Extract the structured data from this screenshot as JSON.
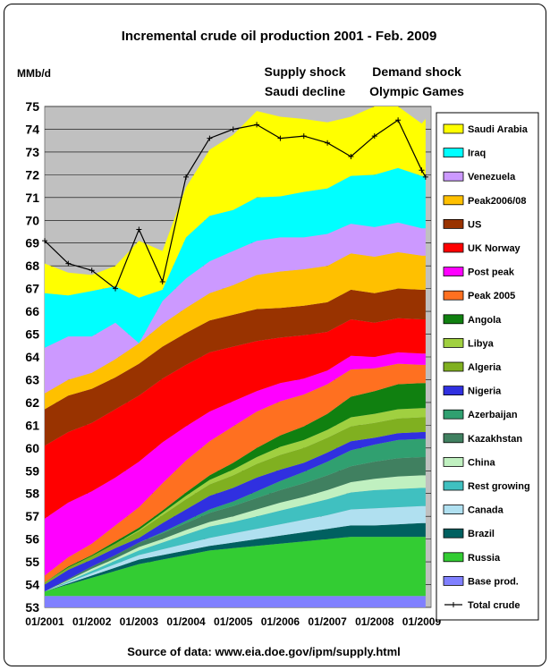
{
  "chart_data": {
    "type": "area",
    "title": "Incremental crude oil production 2001 - Feb. 2009",
    "ylabel": "MMb/d",
    "source": "Source of data: www.eia.doe.gov/ipm/supply.html",
    "annotations": [
      "Supply shock",
      "Saudi decline",
      "Demand shock",
      "Olympic Games"
    ],
    "ylim": [
      53,
      75
    ],
    "y_ticks": [
      53,
      54,
      55,
      56,
      57,
      58,
      59,
      60,
      61,
      62,
      63,
      64,
      65,
      66,
      67,
      68,
      69,
      70,
      71,
      72,
      73,
      74,
      75
    ],
    "x_ticks": [
      "01/2001",
      "01/2002",
      "01/2003",
      "01/2004",
      "01/2005",
      "01/2006",
      "01/2007",
      "01/2008",
      "01/2009"
    ],
    "grid": true,
    "legend_position": "right",
    "x": [
      "01/2001",
      "07/2001",
      "01/2002",
      "07/2002",
      "01/2003",
      "07/2003",
      "01/2004",
      "07/2004",
      "01/2005",
      "07/2005",
      "01/2006",
      "07/2006",
      "01/2007",
      "07/2007",
      "01/2008",
      "07/2008",
      "01/2009",
      "02/2009"
    ],
    "series": [
      {
        "name": "Base prod.",
        "color": "#8080ff",
        "values": [
          0.5,
          0.5,
          0.5,
          0.5,
          0.5,
          0.5,
          0.5,
          0.5,
          0.5,
          0.5,
          0.5,
          0.5,
          0.5,
          0.5,
          0.5,
          0.5,
          0.5,
          0.5
        ]
      },
      {
        "name": "Russia",
        "color": "#33cc33",
        "values": [
          0.2,
          0.5,
          0.8,
          1.1,
          1.4,
          1.6,
          1.8,
          2.0,
          2.1,
          2.2,
          2.3,
          2.4,
          2.5,
          2.6,
          2.6,
          2.6,
          2.6,
          2.6
        ]
      },
      {
        "name": "Brazil",
        "color": "#006060",
        "values": [
          0.0,
          0.05,
          0.1,
          0.15,
          0.2,
          0.2,
          0.2,
          0.2,
          0.25,
          0.3,
          0.35,
          0.4,
          0.45,
          0.5,
          0.5,
          0.55,
          0.6,
          0.6
        ]
      },
      {
        "name": "Canada",
        "color": "#b0e0f0",
        "values": [
          0.0,
          0.05,
          0.1,
          0.15,
          0.2,
          0.25,
          0.3,
          0.35,
          0.4,
          0.45,
          0.5,
          0.55,
          0.6,
          0.7,
          0.75,
          0.75,
          0.75,
          0.75
        ]
      },
      {
        "name": "Rest growing",
        "color": "#40c0c0",
        "values": [
          0.0,
          0.05,
          0.1,
          0.15,
          0.2,
          0.3,
          0.4,
          0.5,
          0.5,
          0.55,
          0.6,
          0.65,
          0.7,
          0.75,
          0.8,
          0.8,
          0.8,
          0.8
        ]
      },
      {
        "name": "China",
        "color": "#c0f0c0",
        "values": [
          0.0,
          0.05,
          0.1,
          0.1,
          0.15,
          0.15,
          0.2,
          0.2,
          0.25,
          0.3,
          0.35,
          0.35,
          0.4,
          0.45,
          0.5,
          0.55,
          0.55,
          0.55
        ]
      },
      {
        "name": "Kazakhstan",
        "color": "#408060",
        "values": [
          0.0,
          0.05,
          0.1,
          0.15,
          0.2,
          0.25,
          0.3,
          0.4,
          0.45,
          0.5,
          0.55,
          0.6,
          0.65,
          0.7,
          0.75,
          0.8,
          0.8,
          0.8
        ]
      },
      {
        "name": "Azerbaijan",
        "color": "#30a070",
        "values": [
          0.0,
          0.0,
          0.0,
          0.0,
          0.0,
          0.05,
          0.1,
          0.15,
          0.2,
          0.3,
          0.4,
          0.5,
          0.6,
          0.7,
          0.75,
          0.8,
          0.8,
          0.8
        ]
      },
      {
        "name": "Nigeria",
        "color": "#3030e0",
        "values": [
          0.3,
          0.4,
          0.3,
          0.3,
          0.2,
          0.4,
          0.5,
          0.6,
          0.6,
          0.6,
          0.5,
          0.4,
          0.4,
          0.4,
          0.3,
          0.3,
          0.3,
          0.3
        ]
      },
      {
        "name": "Algeria",
        "color": "#80b020",
        "values": [
          0.1,
          0.1,
          0.15,
          0.2,
          0.3,
          0.35,
          0.45,
          0.5,
          0.55,
          0.6,
          0.65,
          0.65,
          0.65,
          0.65,
          0.65,
          0.65,
          0.65,
          0.65
        ]
      },
      {
        "name": "Libya",
        "color": "#a0d040",
        "values": [
          0.0,
          0.0,
          0.0,
          0.0,
          0.05,
          0.1,
          0.15,
          0.2,
          0.25,
          0.3,
          0.35,
          0.35,
          0.35,
          0.4,
          0.4,
          0.4,
          0.4,
          0.4
        ]
      },
      {
        "name": "Angola",
        "color": "#108010",
        "values": [
          0.0,
          0.05,
          0.05,
          0.1,
          0.1,
          0.1,
          0.15,
          0.2,
          0.3,
          0.4,
          0.5,
          0.6,
          0.7,
          0.9,
          1.0,
          1.1,
          1.1,
          1.1
        ]
      },
      {
        "name": "Peak 2005",
        "color": "#ff7020",
        "values": [
          0.3,
          0.4,
          0.5,
          0.7,
          0.9,
          1.2,
          1.4,
          1.5,
          1.6,
          1.6,
          1.5,
          1.4,
          1.3,
          1.2,
          1.0,
          0.9,
          0.8,
          0.8
        ]
      },
      {
        "name": "Post peak",
        "color": "#ff00ff",
        "values": [
          2.5,
          2.4,
          2.3,
          2.1,
          2.0,
          1.8,
          1.5,
          1.3,
          1.1,
          0.9,
          0.8,
          0.7,
          0.6,
          0.6,
          0.5,
          0.5,
          0.5,
          0.5
        ]
      },
      {
        "name": "UK Norway",
        "color": "#ff0000",
        "values": [
          3.2,
          3.1,
          3.0,
          3.0,
          2.9,
          2.8,
          2.7,
          2.6,
          2.4,
          2.2,
          2.0,
          1.9,
          1.7,
          1.6,
          1.5,
          1.5,
          1.5,
          1.5
        ]
      },
      {
        "name": "US",
        "color": "#993300",
        "values": [
          1.6,
          1.6,
          1.5,
          1.4,
          1.4,
          1.4,
          1.4,
          1.4,
          1.4,
          1.4,
          1.3,
          1.3,
          1.3,
          1.3,
          1.3,
          1.3,
          1.3,
          1.3
        ]
      },
      {
        "name": "Peak2006/08",
        "color": "#ffc000",
        "values": [
          0.7,
          0.7,
          0.7,
          0.8,
          0.9,
          1.0,
          1.1,
          1.2,
          1.3,
          1.5,
          1.6,
          1.6,
          1.6,
          1.6,
          1.6,
          1.6,
          1.5,
          1.5
        ]
      },
      {
        "name": "Venezuela",
        "color": "#cc99ff",
        "values": [
          2.0,
          1.9,
          1.6,
          1.6,
          0.0,
          1.0,
          1.3,
          1.4,
          1.5,
          1.5,
          1.5,
          1.4,
          1.4,
          1.3,
          1.3,
          1.3,
          1.2,
          1.2
        ]
      },
      {
        "name": "Iraq",
        "color": "#00ffff",
        "values": [
          2.4,
          1.8,
          2.0,
          1.6,
          2.0,
          0.5,
          1.8,
          2.0,
          1.8,
          1.9,
          1.8,
          2.0,
          2.0,
          2.1,
          2.3,
          2.4,
          2.3,
          2.3
        ]
      },
      {
        "name": "Saudi Arabia",
        "color": "#ffff00",
        "values": [
          1.3,
          1.0,
          0.7,
          0.9,
          2.5,
          1.7,
          2.2,
          2.9,
          3.3,
          3.8,
          3.5,
          3.2,
          2.9,
          2.6,
          3.3,
          3.8,
          2.3,
          2.5
        ]
      },
      {
        "name": "Total crude",
        "type": "line",
        "color": "#000000",
        "values": [
          69.1,
          68.1,
          67.8,
          67.0,
          69.6,
          67.3,
          71.9,
          73.6,
          74.0,
          74.2,
          73.6,
          73.7,
          73.4,
          72.8,
          73.7,
          74.4,
          72.2,
          71.9
        ]
      }
    ]
  }
}
